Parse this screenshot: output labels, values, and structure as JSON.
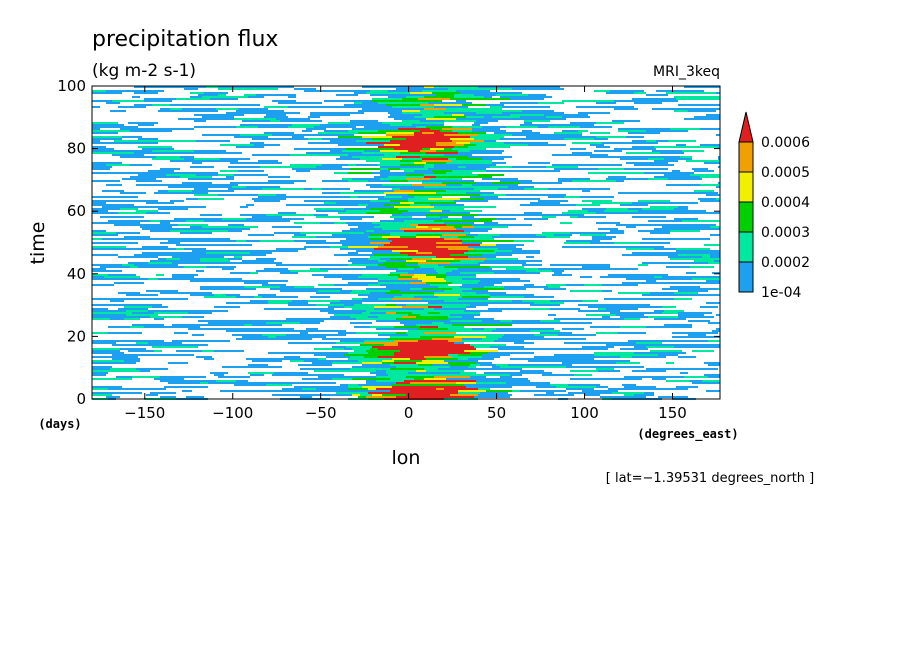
{
  "chart_data": {
    "type": "heatmap",
    "title": "precipitation flux",
    "units": "(kg m-2 s-1)",
    "model": "MRI_3keq",
    "xlabel": "lon",
    "ylabel": "time",
    "x_unit": "(degrees_east)",
    "y_unit": "(days)",
    "xlim": [
      -180,
      177
    ],
    "ylim": [
      0,
      100
    ],
    "x_ticks": [
      -150,
      -100,
      -50,
      0,
      50,
      100,
      150
    ],
    "y_ticks": [
      0,
      20,
      40,
      60,
      80,
      100
    ],
    "x_tick_labels": [
      "−150",
      "−100",
      "−50",
      "0",
      "50",
      "100",
      "150"
    ],
    "y_tick_labels": [
      "0",
      "20",
      "40",
      "60",
      "80",
      "100"
    ],
    "annotation": "[ lat=−1.39531 degrees_north ]",
    "colorbar": {
      "labels": [
        "1e-04",
        "0.0002",
        "0.0003",
        "0.0004",
        "0.0005",
        "0.0006"
      ],
      "thresholds": [
        0.0001,
        0.0002,
        0.0003,
        0.0004,
        0.0005,
        0.0006
      ],
      "colors": [
        "#1ea0f0",
        "#00e8a0",
        "#00d000",
        "#f0f000",
        "#f0a000",
        "#e02020"
      ],
      "extend": "max"
    },
    "pattern": {
      "description": "Eastward-propagating precipitation streaks; enhanced intensity near lon 0 (band about -20 to 30 degrees_east); strongest near 0 degrees at days ~2-5, 15-18, 47-52 and 80-86.",
      "enhanced_lon_range": [
        -20,
        30
      ],
      "peak_days": [
        3,
        16,
        50,
        83
      ]
    }
  }
}
